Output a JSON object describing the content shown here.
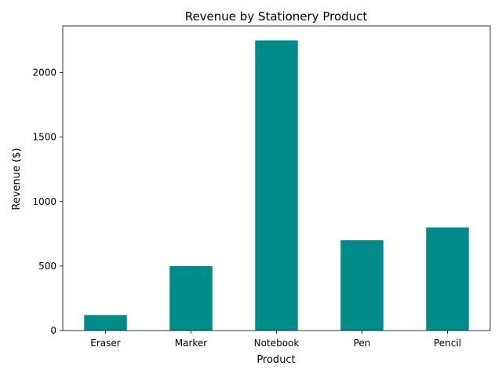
{
  "chart_data": {
    "type": "bar",
    "title": "Revenue by Stationery Product",
    "xlabel": "Product",
    "ylabel": "Revenue ($)",
    "categories": [
      "Eraser",
      "Marker",
      "Notebook",
      "Pen",
      "Pencil"
    ],
    "values": [
      120,
      500,
      2250,
      700,
      800
    ],
    "ylim": [
      0,
      2362.5
    ],
    "yticks": [
      0,
      500,
      1000,
      1500,
      2000
    ],
    "grid": false,
    "legend": "none",
    "bar_color": "#008b8b"
  }
}
